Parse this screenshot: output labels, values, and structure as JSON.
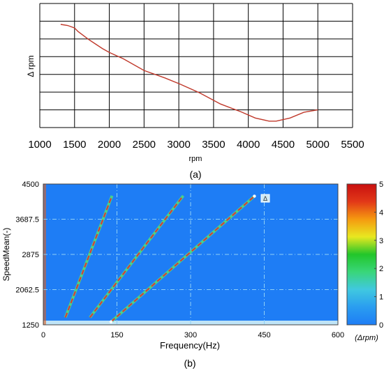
{
  "chart_data": [
    {
      "panel_label": "(a)",
      "type": "line",
      "xlabel": "rpm",
      "ylabel": "Δ rpm",
      "xlim": [
        1000,
        5500
      ],
      "x_ticks": [
        "1000",
        "1500",
        "2000",
        "2500",
        "3000",
        "3500",
        "4000",
        "4500",
        "5000",
        "5500"
      ],
      "y_tick_labels_shown": false,
      "ylim": [
        0,
        7
      ],
      "grid": true,
      "x": [
        1300,
        1400,
        1500,
        1550,
        1700,
        1800,
        1900,
        2000,
        2200,
        2500,
        2800,
        3000,
        3300,
        3600,
        3900,
        4100,
        4300,
        4400,
        4600,
        4800,
        5000
      ],
      "y": [
        5.82,
        5.76,
        5.62,
        5.42,
        4.98,
        4.72,
        4.46,
        4.24,
        3.88,
        3.22,
        2.8,
        2.48,
        1.96,
        1.33,
        0.88,
        0.54,
        0.36,
        0.36,
        0.54,
        0.86,
        1.0
      ],
      "line_color": "#c0392b"
    },
    {
      "panel_label": "(b)",
      "type": "heatmap",
      "xlabel": "Frequency(Hz)",
      "ylabel": "SpeedMean(-)",
      "x_ticks": [
        "0",
        "150",
        "300",
        "450",
        "600"
      ],
      "y_ticks": [
        "1250",
        "2062.5",
        "2875",
        "3687.5",
        "4500"
      ],
      "xlim": [
        0,
        600
      ],
      "ylim": [
        1250,
        4500
      ],
      "colorbar": {
        "ticks": [
          "0",
          "1",
          "2",
          "3",
          "4",
          "5"
        ],
        "range": [
          0,
          5
        ],
        "label": "(Δrpm)",
        "colors": [
          "#1e7df5",
          "#2a9df0",
          "#40c8e0",
          "#39d67a",
          "#22c62a",
          "#e8e820",
          "#f59a10",
          "#e23818",
          "#c81010"
        ]
      },
      "orders": [
        {
          "from": [
            45,
            1420
          ],
          "to": [
            140,
            4230
          ]
        },
        {
          "from": [
            95,
            1420
          ],
          "to": [
            285,
            4230
          ]
        },
        {
          "from": [
            138,
            1320
          ],
          "to": [
            430,
            4220
          ]
        }
      ],
      "order_line_color": "#e0303a",
      "marker_label": "Δ"
    }
  ]
}
